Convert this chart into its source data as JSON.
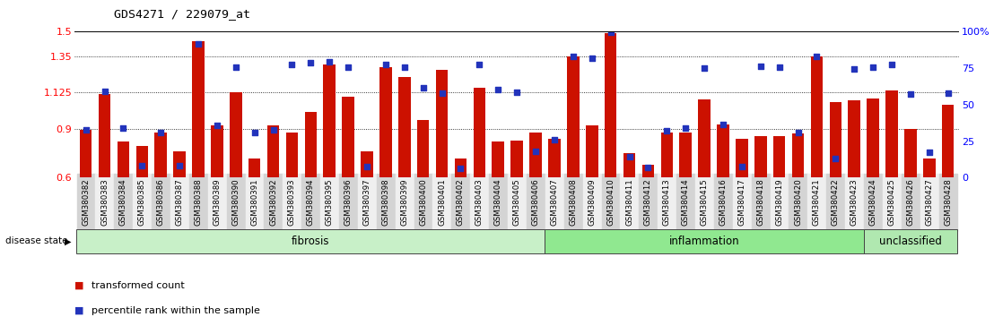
{
  "title": "GDS4271 / 229079_at",
  "samples": [
    "GSM380382",
    "GSM380383",
    "GSM380384",
    "GSM380385",
    "GSM380386",
    "GSM380387",
    "GSM380388",
    "GSM380389",
    "GSM380390",
    "GSM380391",
    "GSM380392",
    "GSM380393",
    "GSM380394",
    "GSM380395",
    "GSM380396",
    "GSM380397",
    "GSM380398",
    "GSM380399",
    "GSM380400",
    "GSM380401",
    "GSM380402",
    "GSM380403",
    "GSM380404",
    "GSM380405",
    "GSM380406",
    "GSM380407",
    "GSM380408",
    "GSM380409",
    "GSM380410",
    "GSM380411",
    "GSM380412",
    "GSM380413",
    "GSM380414",
    "GSM380415",
    "GSM380416",
    "GSM380417",
    "GSM380418",
    "GSM380419",
    "GSM380420",
    "GSM380421",
    "GSM380422",
    "GSM380423",
    "GSM380424",
    "GSM380425",
    "GSM380426",
    "GSM380427",
    "GSM380428"
  ],
  "bar_values": [
    0.895,
    1.115,
    0.825,
    0.795,
    0.875,
    0.76,
    1.44,
    0.92,
    1.125,
    0.72,
    0.92,
    0.88,
    1.005,
    1.3,
    1.1,
    0.76,
    1.28,
    1.22,
    0.955,
    1.265,
    0.72,
    1.155,
    0.82,
    0.83,
    0.88,
    0.84,
    1.35,
    0.92,
    1.49,
    0.75,
    0.68,
    0.875,
    0.875,
    1.08,
    0.93,
    0.84,
    0.855,
    0.855,
    0.87,
    1.35,
    1.065,
    1.075,
    1.09,
    1.14,
    0.9,
    0.72,
    1.05
  ],
  "dot_values": [
    0.895,
    1.13,
    0.905,
    0.675,
    0.875,
    0.675,
    1.425,
    0.92,
    1.28,
    0.875,
    0.895,
    1.3,
    1.31,
    1.315,
    1.28,
    0.665,
    1.295,
    1.28,
    1.155,
    1.12,
    0.655,
    1.3,
    1.145,
    1.125,
    0.76,
    0.835,
    1.345,
    1.335,
    1.495,
    0.73,
    0.66,
    0.89,
    0.905,
    1.275,
    0.93,
    0.665,
    1.285,
    1.28,
    0.88,
    1.35,
    0.72,
    1.27,
    1.28,
    1.3,
    1.115,
    0.755,
    1.12
  ],
  "groups": [
    {
      "label": "fibrosis",
      "start": 0,
      "end": 24,
      "color": "#c8f0c8"
    },
    {
      "label": "inflammation",
      "start": 25,
      "end": 41,
      "color": "#90e890"
    },
    {
      "label": "unclassified",
      "start": 42,
      "end": 46,
      "color": "#b0e8b0"
    }
  ],
  "ylim_left": [
    0.6,
    1.5
  ],
  "yticks_left": [
    0.6,
    0.9,
    1.125,
    1.35,
    1.5
  ],
  "ytick_labels_left": [
    "0.6",
    "0.9",
    "1.125",
    "1.35",
    "1.5"
  ],
  "ylim_right": [
    0,
    100
  ],
  "yticks_right": [
    0,
    25,
    50,
    75,
    100
  ],
  "ytick_labels_right": [
    "0",
    "25",
    "50",
    "75",
    "100%"
  ],
  "dotted_lines": [
    0.9,
    1.125,
    1.35
  ],
  "bar_color": "#cc1100",
  "dot_color": "#2233bb",
  "legend_items": [
    {
      "label": "transformed count",
      "color": "#cc1100"
    },
    {
      "label": "percentile rank within the sample",
      "color": "#2233bb"
    }
  ],
  "disease_state_label": "disease state"
}
